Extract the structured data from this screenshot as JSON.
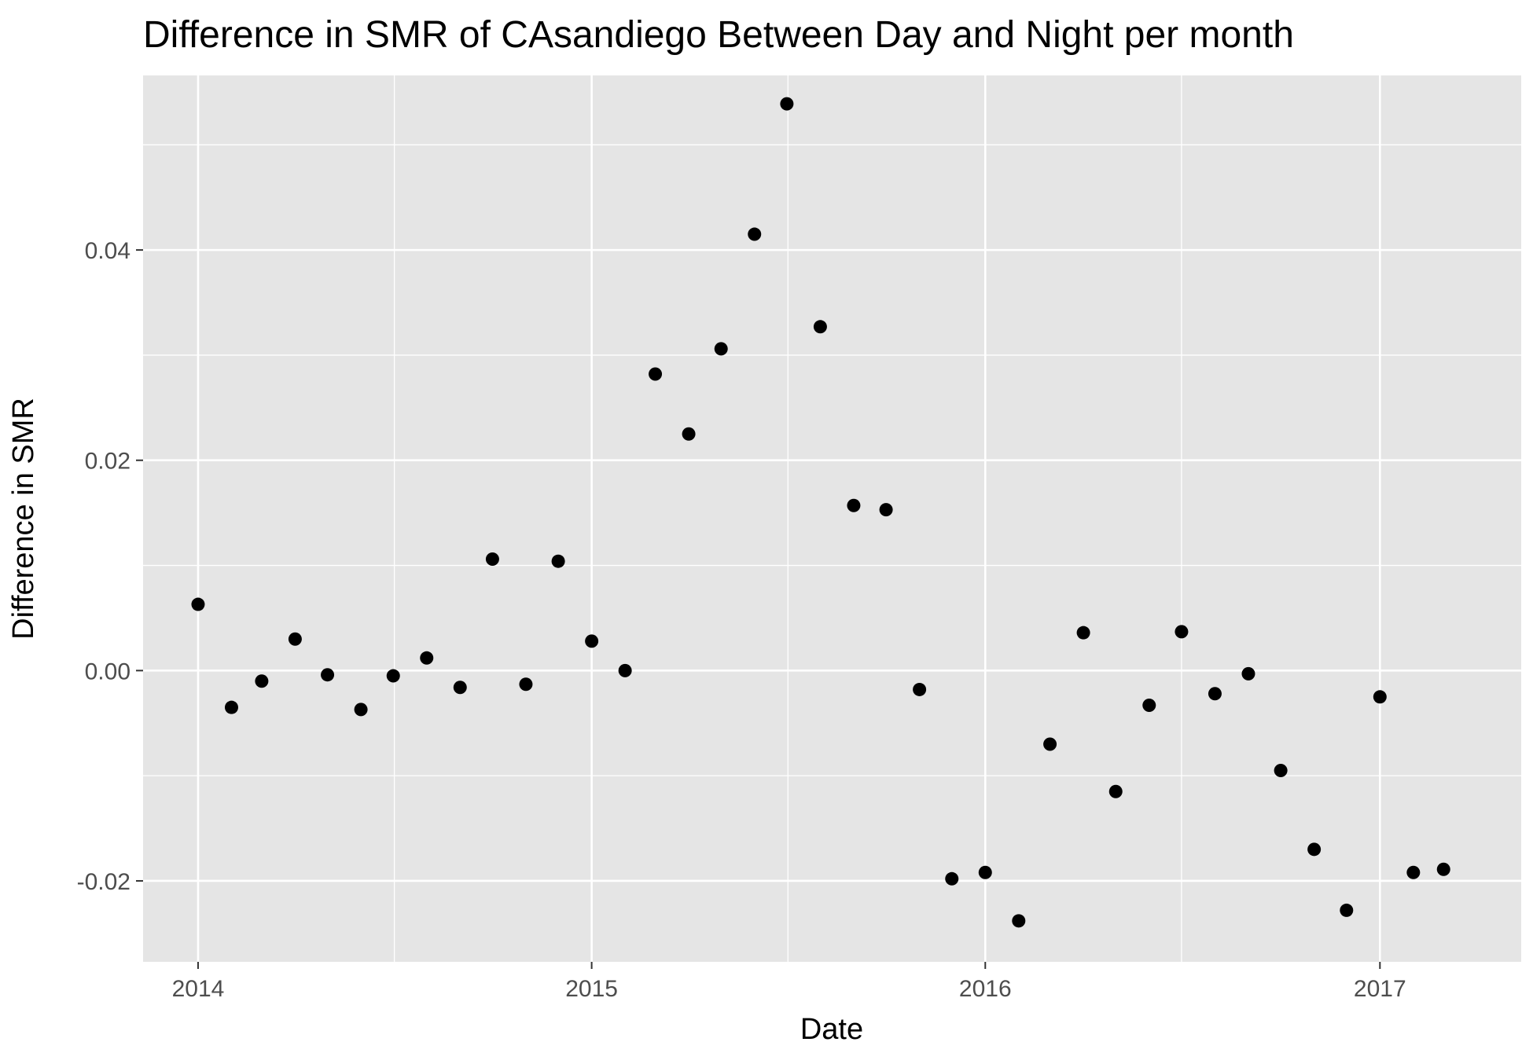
{
  "chart_data": {
    "type": "scatter",
    "title": "Difference in SMR of CAsandiego Between Day and Night per month",
    "xlabel": "Date",
    "ylabel": "Difference in SMR",
    "x_type": "date",
    "xlim": [
      "2013-11-11",
      "2017-05-12"
    ],
    "ylim": [
      -0.0277,
      0.0566
    ],
    "x_ticks": [
      {
        "value": "2014-01-01",
        "label": "2014"
      },
      {
        "value": "2015-01-01",
        "label": "2015"
      },
      {
        "value": "2016-01-01",
        "label": "2016"
      },
      {
        "value": "2017-01-01",
        "label": "2017"
      }
    ],
    "x_minor_ticks": [
      "2014-07-02",
      "2015-07-02",
      "2016-07-01"
    ],
    "y_ticks": [
      {
        "value": -0.02,
        "label": "-0.02"
      },
      {
        "value": 0.0,
        "label": "0.00"
      },
      {
        "value": 0.02,
        "label": "0.02"
      },
      {
        "value": 0.04,
        "label": "0.04"
      }
    ],
    "y_minor_ticks": [
      -0.01,
      0.01,
      0.03,
      0.05
    ],
    "grid": true,
    "colors": {
      "panel": "#e5e5e5",
      "grid": "#ffffff",
      "point": "#000000",
      "tick": "#4d4d4d"
    },
    "points": [
      {
        "x": "2014-01-01",
        "y": 0.0063
      },
      {
        "x": "2014-02-01",
        "y": -0.0035
      },
      {
        "x": "2014-03-01",
        "y": -0.001
      },
      {
        "x": "2014-04-01",
        "y": 0.003
      },
      {
        "x": "2014-05-01",
        "y": -0.0004
      },
      {
        "x": "2014-06-01",
        "y": -0.0037
      },
      {
        "x": "2014-07-01",
        "y": -0.0005
      },
      {
        "x": "2014-08-01",
        "y": 0.0012
      },
      {
        "x": "2014-09-01",
        "y": -0.0016
      },
      {
        "x": "2014-10-01",
        "y": 0.0106
      },
      {
        "x": "2014-11-01",
        "y": -0.0013
      },
      {
        "x": "2014-12-01",
        "y": 0.0104
      },
      {
        "x": "2015-01-01",
        "y": 0.0028
      },
      {
        "x": "2015-02-01",
        "y": 0.0
      },
      {
        "x": "2015-03-01",
        "y": 0.0282
      },
      {
        "x": "2015-04-01",
        "y": 0.0225
      },
      {
        "x": "2015-05-01",
        "y": 0.0306
      },
      {
        "x": "2015-06-01",
        "y": 0.0415
      },
      {
        "x": "2015-07-01",
        "y": 0.0539
      },
      {
        "x": "2015-08-01",
        "y": 0.0327
      },
      {
        "x": "2015-09-01",
        "y": 0.0157
      },
      {
        "x": "2015-10-01",
        "y": 0.0153
      },
      {
        "x": "2015-11-01",
        "y": -0.0018
      },
      {
        "x": "2015-12-01",
        "y": -0.0198
      },
      {
        "x": "2016-01-01",
        "y": -0.0192
      },
      {
        "x": "2016-02-01",
        "y": -0.0238
      },
      {
        "x": "2016-03-01",
        "y": -0.007
      },
      {
        "x": "2016-04-01",
        "y": 0.0036
      },
      {
        "x": "2016-05-01",
        "y": -0.0115
      },
      {
        "x": "2016-06-01",
        "y": -0.0033
      },
      {
        "x": "2016-07-01",
        "y": 0.0037
      },
      {
        "x": "2016-08-01",
        "y": -0.0022
      },
      {
        "x": "2016-09-01",
        "y": -0.0003
      },
      {
        "x": "2016-10-01",
        "y": -0.0095
      },
      {
        "x": "2016-11-01",
        "y": -0.017
      },
      {
        "x": "2016-12-01",
        "y": -0.0228
      },
      {
        "x": "2017-01-01",
        "y": -0.0025
      },
      {
        "x": "2017-02-01",
        "y": -0.0192
      },
      {
        "x": "2017-03-01",
        "y": -0.0189
      }
    ]
  }
}
